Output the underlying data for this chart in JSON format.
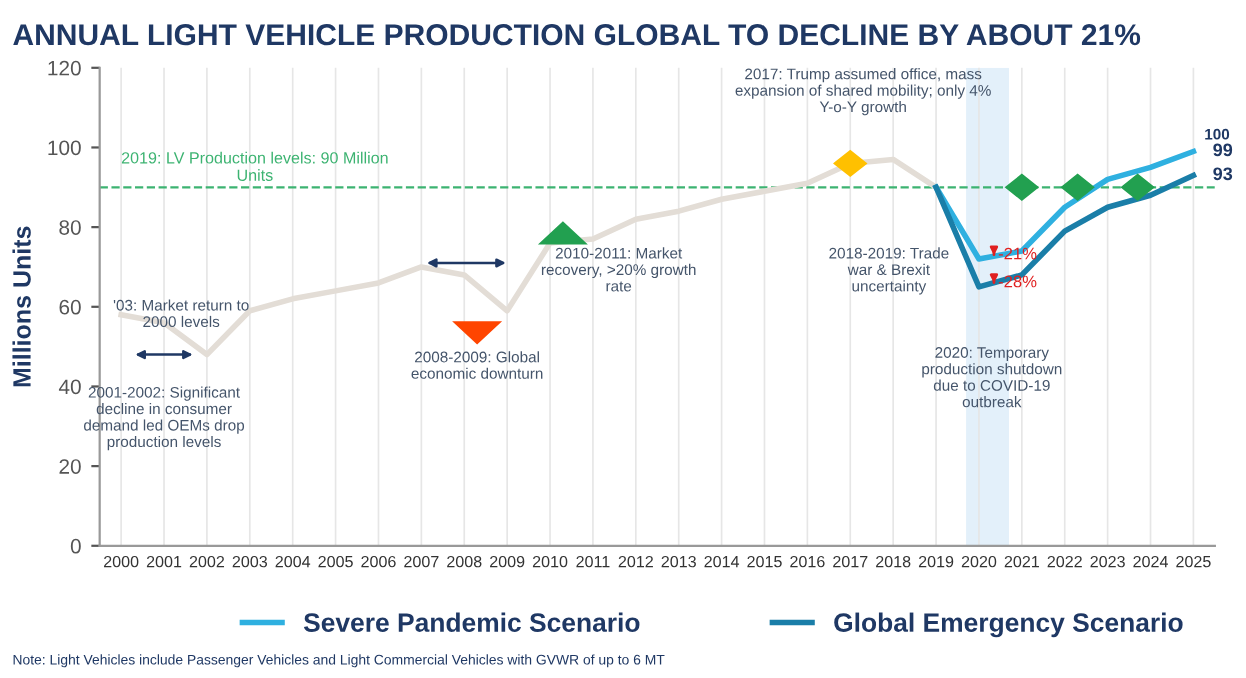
{
  "chart_data": {
    "type": "line",
    "title": "ANNUAL LIGHT VEHICLE PRODUCTION GLOBAL TO DECLINE BY ABOUT 21%",
    "ylabel": "Millions Units",
    "xlim": [
      1999.5,
      2025.5
    ],
    "xticks": [
      2000,
      2001,
      2002,
      2003,
      2004,
      2005,
      2006,
      2007,
      2008,
      2009,
      2010,
      2011,
      2012,
      2013,
      2014,
      2015,
      2016,
      2017,
      2018,
      2019,
      2020,
      2021,
      2022,
      2023,
      2024,
      2025
    ],
    "ylim": [
      0,
      120
    ],
    "yticks": [
      0,
      20,
      40,
      60,
      80,
      100,
      {
        "value": 120,
        "label": "120"
      }
    ],
    "grid": "x",
    "legend": "bottom",
    "marker": "none",
    "line_style": "solid",
    "series": [
      {
        "color": "#e3ddd6",
        "x": [
          2000,
          2001,
          2002,
          2003,
          2004,
          2005,
          2006,
          2007,
          2008,
          2009,
          2010,
          2011,
          2012,
          2013,
          2014,
          2015,
          2016,
          2017,
          2018,
          2019
        ],
        "values": [
          58,
          56,
          48,
          59,
          62,
          64,
          66,
          70,
          68,
          59,
          76,
          77,
          82,
          84,
          87,
          89,
          91,
          96,
          97,
          90
        ]
      },
      {
        "name": "Severe Pandemic Scenario",
        "color": "#2fb0e0",
        "x": [
          2019,
          2020,
          2021,
          2022,
          2023,
          2024,
          2025
        ],
        "values": [
          90,
          72,
          74,
          85,
          92,
          95,
          99
        ],
        "value_labels": [
          null,
          null,
          null,
          null,
          null,
          null,
          "99"
        ]
      },
      {
        "name": "Global Emergency Scenario",
        "color": "#1a7ea8",
        "x": [
          2019,
          2020,
          2021,
          2022,
          2023,
          2024,
          2025
        ],
        "values": [
          90,
          65,
          68,
          79,
          85,
          88,
          93
        ],
        "value_labels": [
          null,
          null,
          null,
          null,
          null,
          null,
          "93"
        ]
      }
    ],
    "ref_lines": [
      {
        "axis": "y",
        "value": 90,
        "label": "2019: LV Production levels: 90 Million Units",
        "color": "#3cb371",
        "line_style": "dashed"
      }
    ],
    "bands": [
      {
        "axis": "x",
        "from": 2019.7,
        "to": 2020.7,
        "color": "#e3f0fa"
      }
    ],
    "annotations": [
      "'03: Market return to 2000 levels",
      "2001-2002: Significant decline in consumer demand led OEMs drop production levels",
      "2008-2009: Global economic downturn",
      "2010-2011: Market recovery, >20% growth rate",
      "2017: Trump assumed office, mass expansion of shared mobility; only 4% Y-o-Y growth",
      "2018-2019: Trade war & Brexit uncertainty",
      "2020: Temporary production shutdown due to COVID-19 outbreak",
      "100",
      "Note: Light Vehicles include Passenger Vehicles and Light Commercial Vehicles with GVWR of up to 6 MT",
      {
        "text": "-21%",
        "x": 2020,
        "y": 72
      },
      {
        "text": "-28%",
        "x": 2020,
        "y": 65
      }
    ]
  }
}
